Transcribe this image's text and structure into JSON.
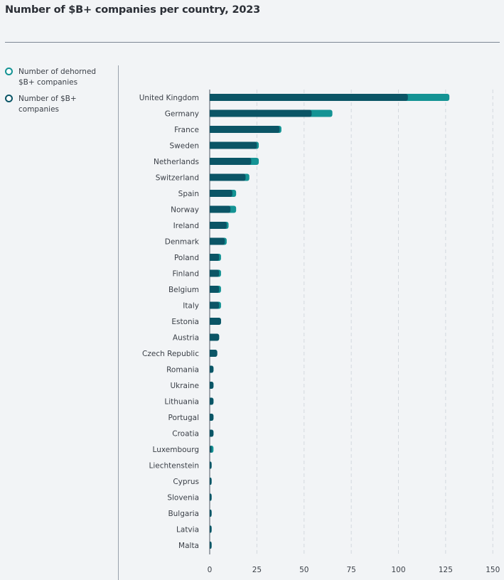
{
  "title": "Number of $B+ companies per country, 2023",
  "legend": [
    {
      "label": "Number of dehorned $B+ companies",
      "color": "#149394"
    },
    {
      "label": "Number of $B+ companies",
      "color": "#0b5566"
    }
  ],
  "chart_data": {
    "type": "bar",
    "orientation": "horizontal",
    "stacked": true,
    "title": "Number of $B+ companies per country, 2023",
    "xlabel": "",
    "ylabel": "",
    "xlim": [
      0,
      150
    ],
    "x_ticks": [
      0,
      25,
      50,
      75,
      100,
      125,
      150
    ],
    "grid": "vertical dashed",
    "legend_position": "left",
    "categories": [
      "United Kingdom",
      "Germany",
      "France",
      "Sweden",
      "Netherlands",
      "Switzerland",
      "Spain",
      "Norway",
      "Ireland",
      "Denmark",
      "Poland",
      "Finland",
      "Belgium",
      "Italy",
      "Estonia",
      "Austria",
      "Czech Republic",
      "Romania",
      "Ukraine",
      "Lithuania",
      "Portugal",
      "Croatia",
      "Luxembourg",
      "Liechtenstein",
      "Cyprus",
      "Slovenia",
      "Bulgaria",
      "Latvia",
      "Malta"
    ],
    "series": [
      {
        "name": "Number of $B+ companies",
        "color": "#0b5566",
        "values": [
          105,
          54,
          37,
          25,
          22,
          19,
          12,
          11,
          9,
          8,
          5,
          5,
          5,
          5,
          6,
          5,
          4,
          2,
          2,
          2,
          2,
          2,
          1,
          1,
          1,
          1,
          1,
          1,
          1
        ]
      },
      {
        "name": "Number of dehorned $B+ companies",
        "color": "#149394",
        "values": [
          22,
          11,
          1,
          1,
          4,
          2,
          2,
          3,
          1,
          1,
          1,
          1,
          1,
          1,
          0,
          0,
          0,
          0,
          0,
          0,
          0,
          0,
          1,
          0,
          0,
          0,
          0,
          0,
          0
        ]
      }
    ]
  }
}
